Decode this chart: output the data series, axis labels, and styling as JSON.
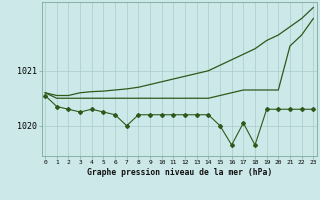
{
  "title": "Graphe pression niveau de la mer (hPa)",
  "hours": [
    0,
    1,
    2,
    3,
    4,
    5,
    6,
    7,
    8,
    9,
    10,
    11,
    12,
    13,
    14,
    15,
    16,
    17,
    18,
    19,
    20,
    21,
    22,
    23
  ],
  "line_trend": [
    1020.6,
    1020.55,
    1020.55,
    1020.6,
    1020.62,
    1020.63,
    1020.65,
    1020.67,
    1020.7,
    1020.75,
    1020.8,
    1020.85,
    1020.9,
    1020.95,
    1021.0,
    1021.1,
    1021.2,
    1021.3,
    1021.4,
    1021.55,
    1021.65,
    1021.8,
    1021.95,
    1022.15
  ],
  "line_upper": [
    1020.6,
    1020.5,
    1020.5,
    1020.5,
    1020.5,
    1020.5,
    1020.5,
    1020.5,
    1020.5,
    1020.5,
    1020.5,
    1020.5,
    1020.5,
    1020.5,
    1020.5,
    1020.55,
    1020.6,
    1020.65,
    1020.65,
    1020.65,
    1020.65,
    1021.45,
    1021.65,
    1021.95
  ],
  "line_mid": [
    1020.55,
    1020.35,
    1020.3,
    1020.25,
    1020.3,
    1020.25,
    1020.2,
    1020.0,
    1020.2,
    1020.2,
    1020.2,
    1020.2,
    1020.2,
    1020.2,
    1020.2,
    1020.0,
    1019.65,
    1020.05,
    1019.65,
    1020.3,
    1020.3,
    1020.3,
    1020.3,
    1020.3
  ],
  "line_color": "#2d5a1b",
  "bg_color": "#cce8e8",
  "grid_color": "#aacccc",
  "ytick_labels": [
    "1020",
    "1021"
  ],
  "ytick_vals": [
    1020.0,
    1021.0
  ],
  "ylim": [
    1019.45,
    1022.25
  ],
  "xlim": [
    -0.3,
    23.3
  ]
}
